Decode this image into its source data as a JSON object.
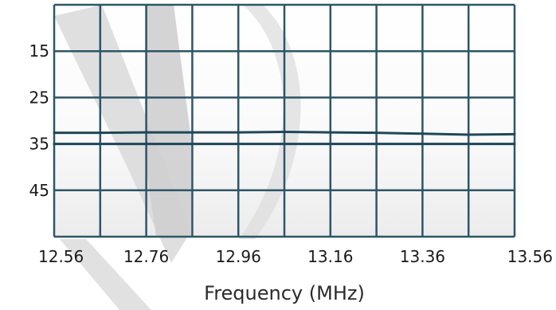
{
  "chart_data": {
    "type": "line",
    "title": "",
    "xlabel": "Frequency (MHz)",
    "ylabel": "",
    "x_ticks": [
      "12.56",
      "12.76",
      "12.96",
      "13.16",
      "13.36",
      "13.56"
    ],
    "y_ticks": [
      "15",
      "25",
      "35",
      "45"
    ],
    "xlim": [
      12.56,
      13.56
    ],
    "ylim": [
      5,
      55
    ],
    "y_inverted": true,
    "grid": true,
    "colors": {
      "grid": "#2e5568",
      "series": "#1f4759",
      "plot_background": "#ffffff",
      "watermark": "#dcdcdc"
    },
    "series": [
      {
        "x": [
          12.56,
          12.66,
          12.76,
          12.86,
          12.96,
          13.06,
          13.16,
          13.26,
          13.36,
          13.46,
          13.56
        ],
        "y": [
          32.6,
          32.6,
          32.5,
          32.5,
          32.5,
          32.4,
          32.5,
          32.6,
          32.8,
          33.0,
          32.9
        ]
      },
      {
        "x": [
          12.56,
          12.66,
          12.76,
          12.86,
          12.96,
          13.06,
          13.16,
          13.26,
          13.36,
          13.46,
          13.56
        ],
        "y": [
          35.0,
          35.0,
          35.0,
          35.0,
          35.0,
          35.0,
          35.0,
          35.0,
          35.0,
          35.0,
          35.0
        ]
      }
    ]
  }
}
